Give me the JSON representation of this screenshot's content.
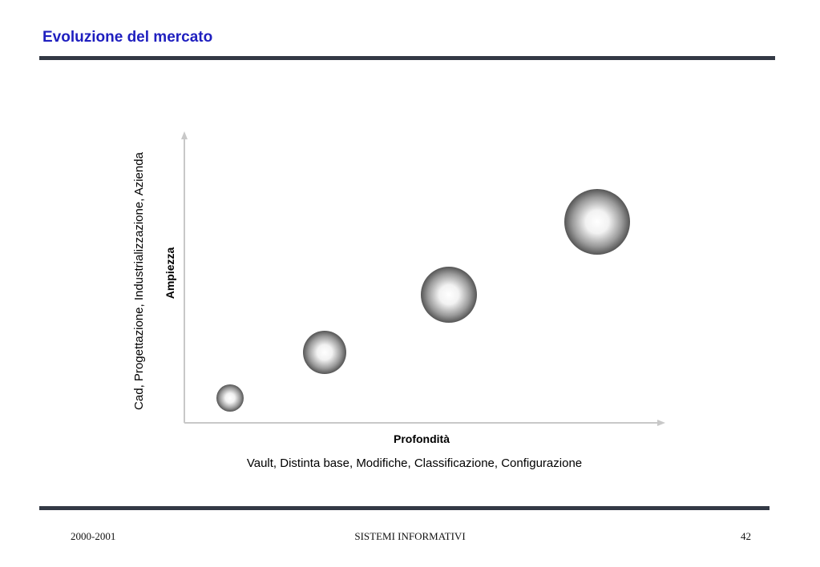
{
  "slide": {
    "title": "Evoluzione del mercato"
  },
  "diagram": {
    "y_axis_label": "Ampiezza",
    "y_axis_sublabel": "Cad, Progettazione, Industrializzazione, Azienda",
    "x_axis_label": "Profondità",
    "x_axis_sublabel": "Vault, Distinta base, Modifiche, Classificazione, Configurazione",
    "colors": {
      "axis": "#c8c8c8",
      "sphere_highlight": "#ffffff",
      "sphere_shadow": "#555555"
    }
  },
  "footer": {
    "left": "2000-2001",
    "center": "SISTEMI INFORMATIVI",
    "right": "42"
  }
}
